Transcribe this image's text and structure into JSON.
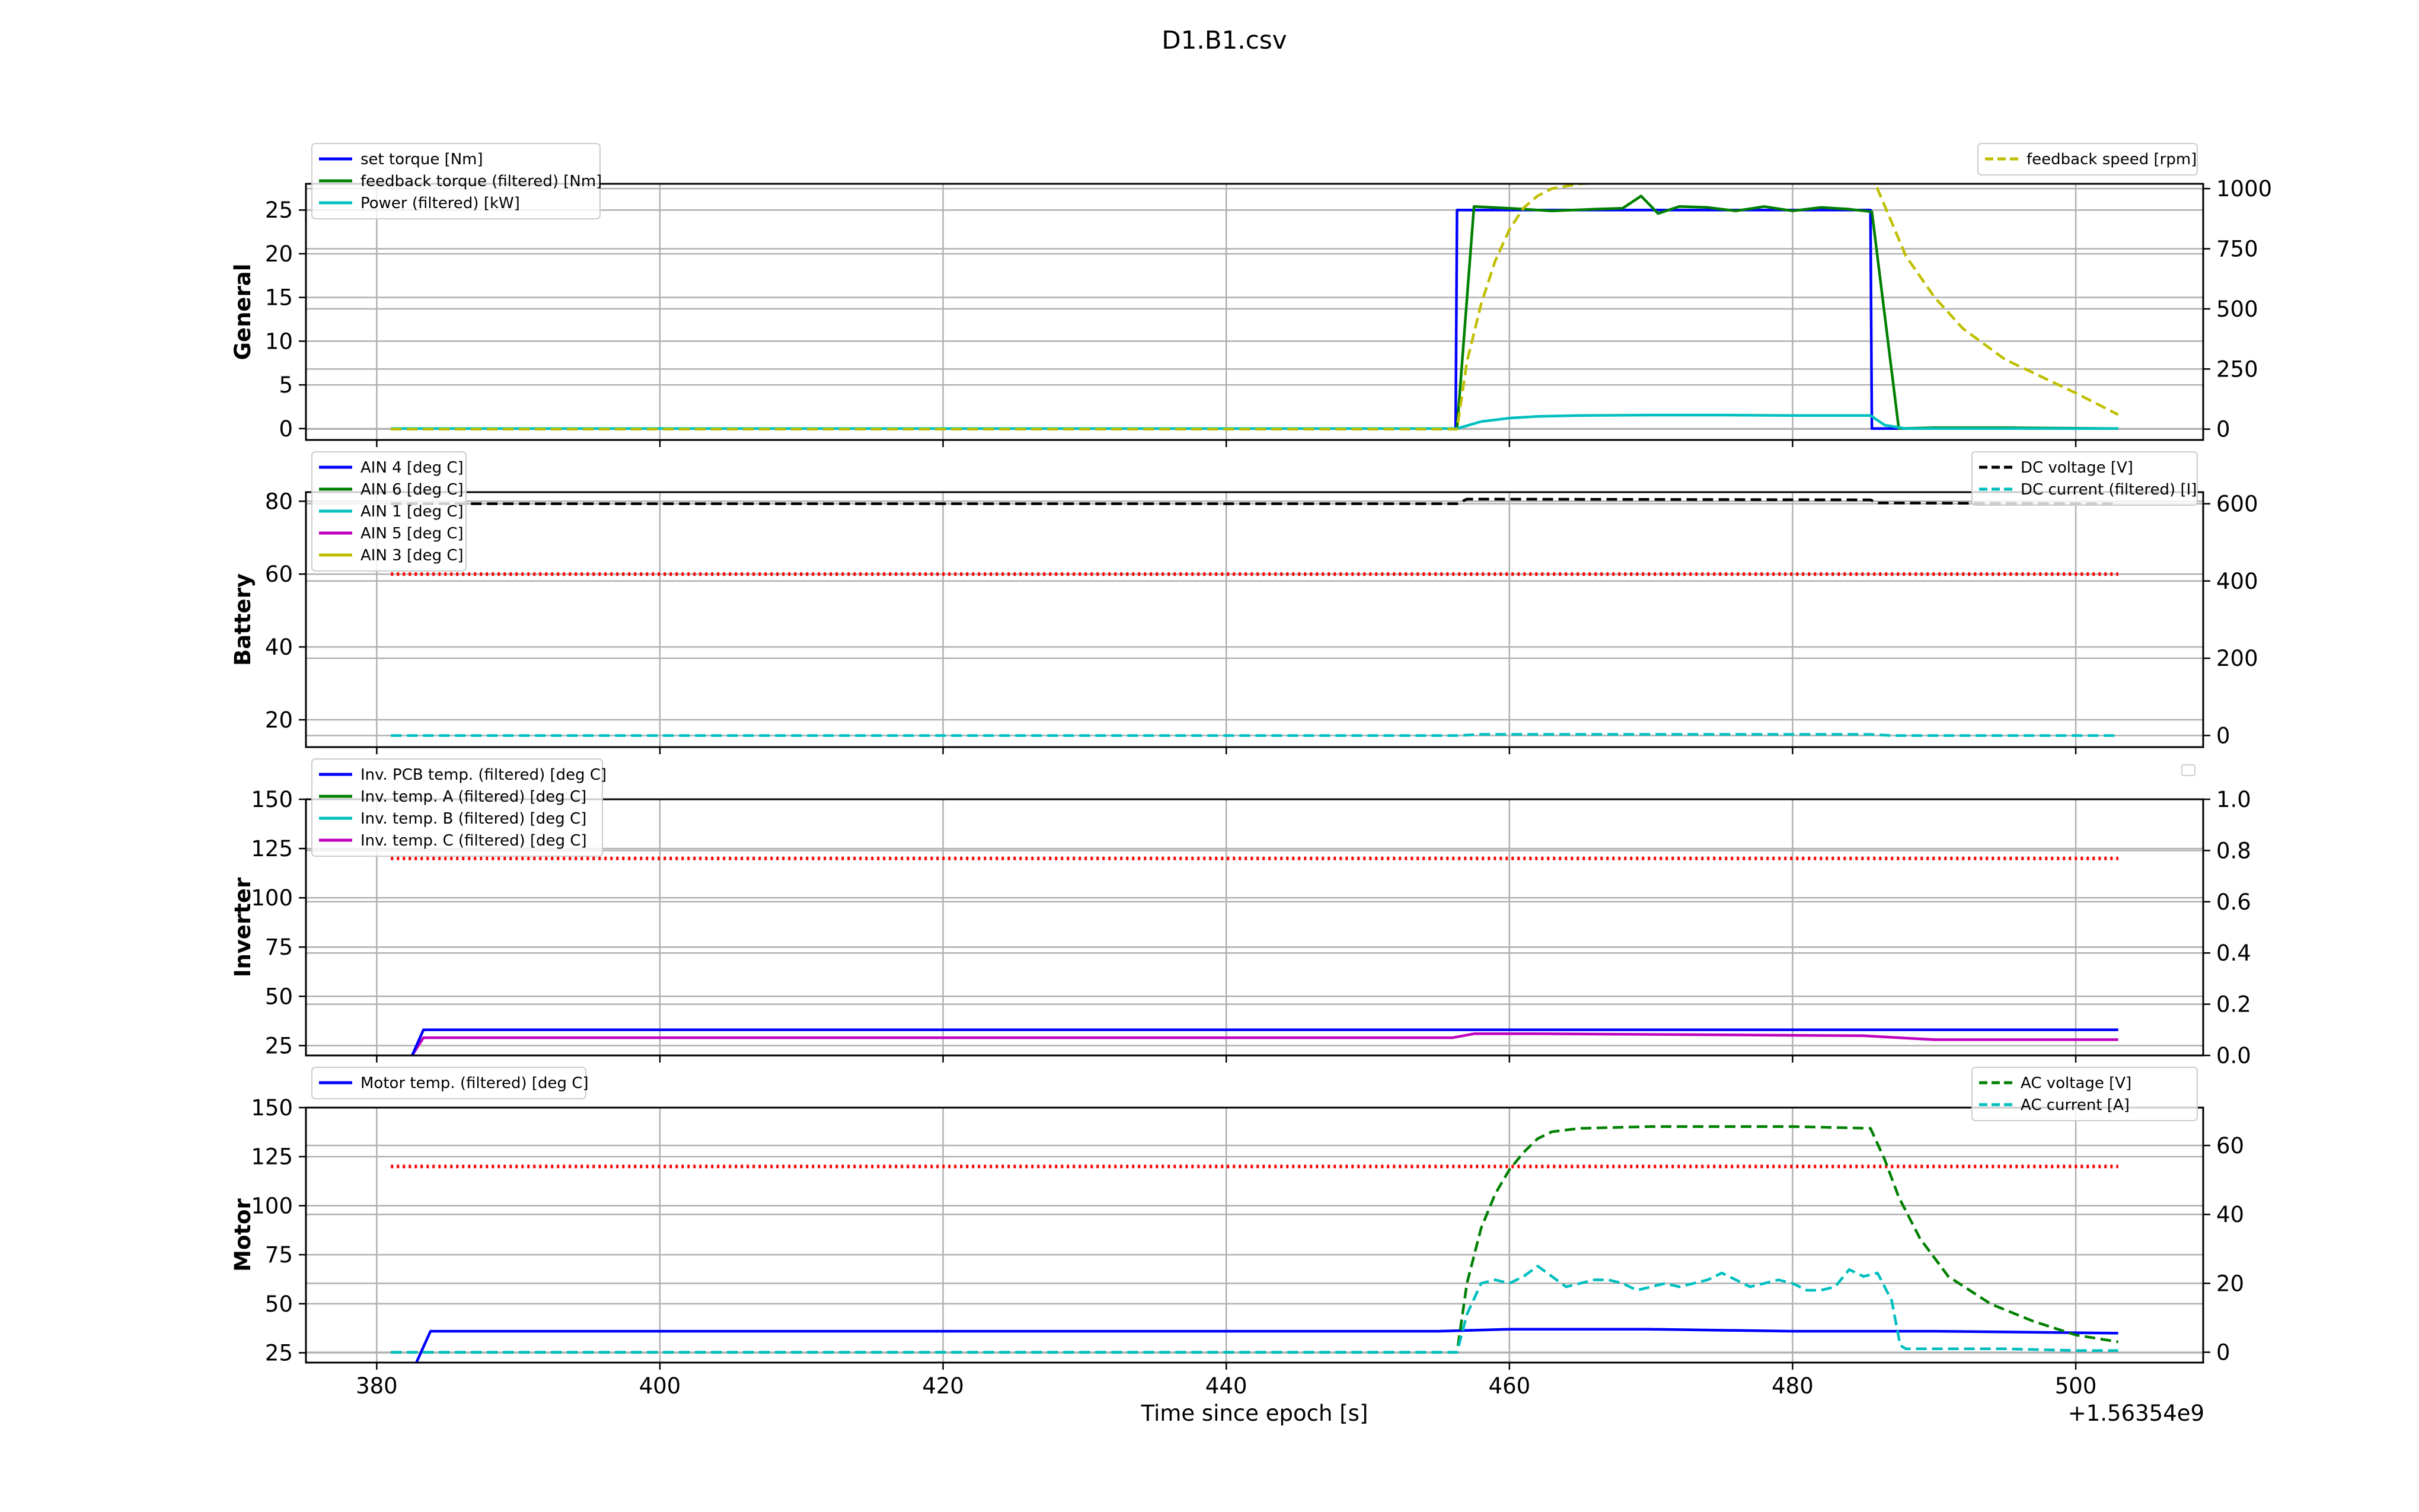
{
  "figure": {
    "title": "D1.B1.csv",
    "xlabel": "Time since epoch [s]",
    "x_offset_label": "+1.56354e9"
  },
  "chart_data": [
    {
      "type": "line",
      "title": "",
      "ylabel": "General",
      "xlim": [
        375,
        509
      ],
      "ylim": [
        -1.3,
        28
      ],
      "y2lim": [
        -45,
        1020
      ],
      "xticks": [
        380,
        400,
        420,
        440,
        460,
        480,
        500
      ],
      "yticks": [
        0,
        5,
        10,
        15,
        20,
        25
      ],
      "y2ticks": [
        0,
        250,
        500,
        750,
        1000
      ],
      "legend_left": [
        "set torque [Nm]",
        "feedback torque (filtered) [Nm]",
        "Power (filtered) [kW]"
      ],
      "legend_right": [
        "feedback speed [rpm]"
      ],
      "series": [
        {
          "name": "set torque [Nm]",
          "axis": "left",
          "color": "#0000ff",
          "style": "solid",
          "x": [
            381,
            456.2,
            456.3,
            485.5,
            485.6,
            503
          ],
          "y": [
            0,
            0,
            25,
            25,
            0,
            0
          ]
        },
        {
          "name": "feedback torque (filtered) [Nm]",
          "axis": "left",
          "color": "#008000",
          "style": "solid",
          "x": [
            381,
            456.3,
            457.5,
            460,
            463,
            466,
            468,
            469.3,
            470.5,
            472,
            474,
            476,
            478,
            480,
            482,
            484,
            485.6,
            487.5,
            490,
            495,
            503
          ],
          "y": [
            0,
            0,
            25.4,
            25.2,
            24.9,
            25.1,
            25.2,
            26.6,
            24.6,
            25.4,
            25.3,
            24.9,
            25.4,
            24.9,
            25.3,
            25.1,
            24.8,
            0,
            0.1,
            0.1,
            0
          ]
        },
        {
          "name": "Power (filtered) [kW]",
          "axis": "left",
          "color": "#00bfbf",
          "style": "solid",
          "x": [
            381,
            456.3,
            458,
            460,
            462,
            465,
            470,
            475,
            480,
            485.5,
            486.5,
            488,
            503
          ],
          "y": [
            0,
            0,
            0.8,
            1.2,
            1.4,
            1.5,
            1.55,
            1.55,
            1.5,
            1.5,
            0.4,
            0,
            0
          ]
        },
        {
          "name": "feedback speed [rpm]",
          "axis": "right",
          "color": "#bfbf00",
          "style": "dashed",
          "x": [
            381,
            456.3,
            457,
            458,
            459,
            460,
            461,
            462,
            463,
            465,
            468,
            472,
            476,
            480,
            485.7,
            487,
            488,
            490,
            492,
            495,
            500,
            503
          ],
          "y": [
            0,
            0,
            280,
            520,
            700,
            830,
            920,
            970,
            1000,
            1020,
            1030,
            1035,
            1040,
            1040,
            1040,
            860,
            720,
            550,
            420,
            290,
            150,
            60
          ]
        }
      ]
    },
    {
      "type": "line",
      "title": "",
      "ylabel": "Battery",
      "xlim": [
        375,
        509
      ],
      "ylim": [
        12.5,
        82.5
      ],
      "y2lim": [
        -30,
        630
      ],
      "xticks": [
        380,
        400,
        420,
        440,
        460,
        480,
        500
      ],
      "yticks": [
        20,
        40,
        60,
        80
      ],
      "y2ticks": [
        0,
        200,
        400,
        600
      ],
      "legend_left": [
        "AIN 4 [deg C]",
        "AIN 6 [deg C]",
        "AIN 1 [deg C]",
        "AIN 5 [deg C]",
        "AIN 3 [deg C]"
      ],
      "legend_right": [
        "DC voltage [V]",
        "DC current (filtered) [I]"
      ],
      "series": [
        {
          "name": "limit",
          "axis": "left",
          "color": "#ff0000",
          "style": "dotted",
          "x": [
            381,
            503
          ],
          "y": [
            60,
            60
          ]
        },
        {
          "name": "DC voltage [V]",
          "axis": "right",
          "color": "#000000",
          "style": "dashed",
          "x": [
            381,
            456.3,
            457,
            485.5,
            486,
            503
          ],
          "y": [
            600,
            600,
            612,
            610,
            602,
            600
          ]
        },
        {
          "name": "DC current (filtered) [I]",
          "axis": "right",
          "color": "#00bfbf",
          "style": "dashed",
          "x": [
            381,
            456.3,
            458,
            485.5,
            487,
            503
          ],
          "y": [
            0,
            0,
            3,
            3,
            0,
            0
          ]
        }
      ]
    },
    {
      "type": "line",
      "title": "",
      "ylabel": "Inverter",
      "xlim": [
        375,
        509
      ],
      "ylim": [
        20,
        150
      ],
      "y2lim": [
        0,
        1.0
      ],
      "xticks": [
        380,
        400,
        420,
        440,
        460,
        480,
        500
      ],
      "yticks": [
        25,
        50,
        75,
        100,
        125,
        150
      ],
      "y2ticks": [
        0.0,
        0.2,
        0.4,
        0.6,
        0.8,
        1.0
      ],
      "legend_left": [
        "Inv. PCB temp. (filtered) [deg C]",
        "Inv. temp. A (filtered) [deg C]",
        "Inv. temp. B (filtered) [deg C]",
        "Inv. temp. C (filtered) [deg C]"
      ],
      "legend_right": [],
      "series": [
        {
          "name": "limit",
          "axis": "left",
          "color": "#ff0000",
          "style": "dotted",
          "x": [
            381,
            503
          ],
          "y": [
            120,
            120
          ]
        },
        {
          "name": "Inv. temp. C (filtered) [deg C]",
          "axis": "left",
          "color": "#bf00bf",
          "style": "solid",
          "x": [
            380,
            382.5,
            383.3,
            456,
            457.5,
            462,
            485,
            490,
            495,
            503
          ],
          "y": [
            0,
            20,
            29,
            29,
            31,
            31,
            30,
            28,
            28,
            28
          ]
        },
        {
          "name": "Inv. PCB temp. (filtered) [deg C]",
          "axis": "left",
          "color": "#0000ff",
          "style": "solid",
          "x": [
            380,
            382.5,
            383.3,
            503
          ],
          "y": [
            0,
            20,
            33,
            33
          ]
        }
      ]
    },
    {
      "type": "line",
      "title": "",
      "ylabel": "Motor",
      "xlim": [
        375,
        509
      ],
      "ylim": [
        20,
        150
      ],
      "y2lim": [
        -3,
        71
      ],
      "xticks": [
        380,
        400,
        420,
        440,
        460,
        480,
        500
      ],
      "xtick_labels": [
        "380",
        "400",
        "420",
        "440",
        "460",
        "480",
        "500"
      ],
      "yticks": [
        25,
        50,
        75,
        100,
        125,
        150
      ],
      "y2ticks": [
        0,
        20,
        40,
        60
      ],
      "legend_left": [
        "Motor temp. (filtered) [deg C]"
      ],
      "legend_right": [
        "AC voltage [V]",
        "AC current [A]"
      ],
      "series": [
        {
          "name": "limit",
          "axis": "left",
          "color": "#ff0000",
          "style": "dotted",
          "x": [
            381,
            503
          ],
          "y": [
            120,
            120
          ]
        },
        {
          "name": "Motor temp. (filtered) [deg C]",
          "axis": "left",
          "color": "#0000ff",
          "style": "solid",
          "x": [
            380,
            382.8,
            383.8,
            455,
            460,
            470,
            480,
            490,
            503
          ],
          "y": [
            0,
            20,
            36,
            36,
            37,
            37,
            36,
            36,
            35
          ]
        },
        {
          "name": "AC voltage [V]",
          "axis": "right",
          "color": "#008000",
          "style": "dashed",
          "x": [
            381,
            456.3,
            457,
            458,
            459,
            460,
            461,
            462,
            463,
            465,
            470,
            475,
            480,
            485.5,
            486.5,
            487.5,
            489,
            491,
            494,
            497,
            500,
            503
          ],
          "y": [
            0,
            0,
            20,
            36,
            46,
            53,
            58,
            62,
            64,
            65,
            65.5,
            65.5,
            65.5,
            65,
            56,
            45,
            33,
            22,
            14,
            9,
            5,
            3
          ]
        },
        {
          "name": "AC current [A]",
          "axis": "right",
          "color": "#00bfbf",
          "style": "dashed",
          "x": [
            381,
            456.3,
            457,
            458,
            459,
            460,
            461,
            462,
            463,
            464,
            465,
            466,
            467,
            468,
            469,
            470,
            471,
            472,
            473,
            474,
            475,
            476,
            477,
            478,
            479,
            480,
            481,
            482,
            483,
            484,
            485,
            486,
            487,
            487.6,
            488,
            490,
            495,
            500,
            503
          ],
          "y": [
            0,
            0,
            11,
            20,
            21,
            20,
            22,
            25,
            22,
            19,
            20,
            21,
            21,
            20,
            18,
            19,
            20,
            19,
            20,
            21,
            23,
            21,
            19,
            20,
            21,
            20,
            18,
            18,
            19,
            24,
            22,
            23,
            15,
            2,
            1,
            1,
            1,
            0.5,
            0.5
          ]
        }
      ]
    }
  ]
}
